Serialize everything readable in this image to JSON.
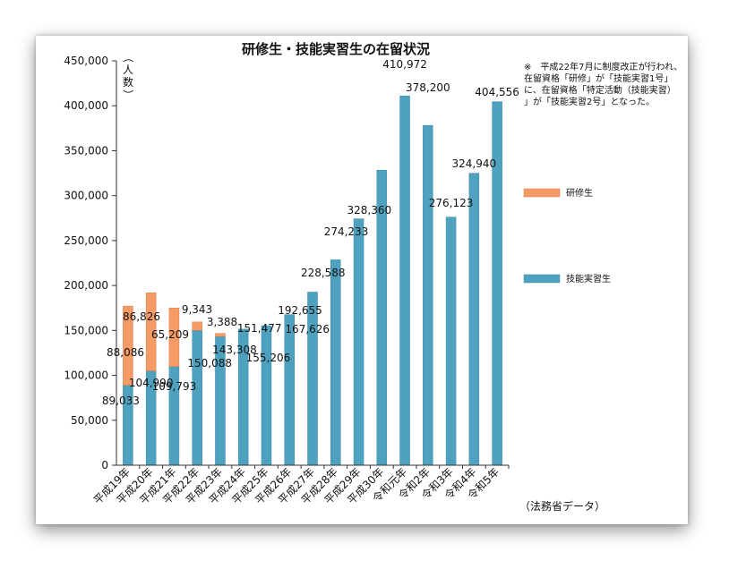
{
  "chart_data": {
    "type": "bar",
    "title": "研修生・技能実習生の在留状況",
    "ylabel": "（人数）",
    "ylim": [
      0,
      450000
    ],
    "yticks": [
      0,
      50000,
      100000,
      150000,
      200000,
      250000,
      300000,
      350000,
      400000,
      450000
    ],
    "ytick_labels": [
      "0",
      "50,000",
      "100,000",
      "150,000",
      "200,000",
      "250,000",
      "300,000",
      "350,000",
      "400,000",
      "450,000"
    ],
    "categories": [
      "平成19年",
      "平成20年",
      "平成21年",
      "平成22年",
      "平成23年",
      "平成24年",
      "平成25年",
      "平成26年",
      "平成27年",
      "平成28年",
      "平成29年",
      "平成30年",
      "令和元年",
      "令和2年",
      "令和3年",
      "令和4年",
      "令和5年"
    ],
    "series": [
      {
        "name": "技能実習生",
        "color": "#4fa2bf",
        "values": [
          89033,
          104990,
          109793,
          150088,
          143308,
          151477,
          155206,
          167626,
          192655,
          228588,
          274233,
          328360,
          410972,
          378200,
          276123,
          324940,
          404556
        ],
        "labels": [
          "89,033",
          "104,990",
          "109,793",
          "150,088",
          "143,308",
          "151,477",
          "155,206",
          "167,626",
          "192,655",
          "228,588",
          "274,233",
          "328,360",
          "410,972",
          "378,200",
          "276,123",
          "324,940",
          "404,556"
        ]
      },
      {
        "name": "研修生",
        "color": "#f49b66",
        "values": [
          88086,
          86826,
          65209,
          9343,
          3388,
          null,
          null,
          null,
          null,
          null,
          null,
          null,
          null,
          null,
          null,
          null,
          null
        ],
        "labels": [
          "88,086",
          "86,826",
          "65,209",
          "9,343",
          "3,388",
          "",
          "",
          "",
          "",
          "",
          "",
          "",
          "",
          "",
          "",
          "",
          ""
        ]
      }
    ],
    "stacked": true,
    "legend_position": "right",
    "grid": false,
    "note": "※　平成22年7月に制度改正が行われ、在留資格「研修」が「技能実習1号」に、在留資格「特定活動（技能実習）」が「技能実習2号」となった。",
    "source": "（法務省データ）"
  }
}
